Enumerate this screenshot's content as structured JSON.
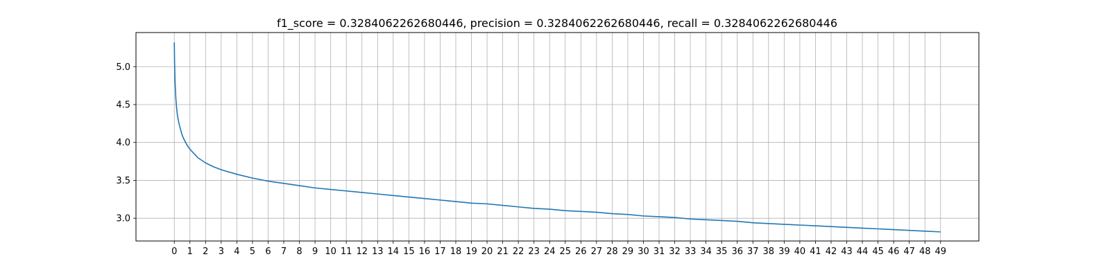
{
  "chart_data": {
    "type": "line",
    "title": "f1_score = 0.3284062262680446, precision = 0.3284062262680446, recall = 0.3284062262680446",
    "xlabel": "",
    "ylabel": "",
    "xlim": [
      -2.45,
      51.45
    ],
    "ylim": [
      2.7,
      5.45
    ],
    "x_ticks": [
      0,
      1,
      2,
      3,
      4,
      5,
      6,
      7,
      8,
      9,
      10,
      11,
      12,
      13,
      14,
      15,
      16,
      17,
      18,
      19,
      20,
      21,
      22,
      23,
      24,
      25,
      26,
      27,
      28,
      29,
      30,
      31,
      32,
      33,
      34,
      35,
      36,
      37,
      38,
      39,
      40,
      41,
      42,
      43,
      44,
      45,
      46,
      47,
      48,
      49
    ],
    "y_ticks": [
      3.0,
      3.5,
      4.0,
      4.5,
      5.0
    ],
    "y_tick_labels": [
      "3.0",
      "3.5",
      "4.0",
      "4.5",
      "5.0"
    ],
    "grid": true,
    "colors": {
      "line": "#1f77b4",
      "grid": "#b0b0b0",
      "axes": "#000000"
    },
    "series": [
      {
        "x": [
          0,
          0.02,
          0.05,
          0.1,
          0.15,
          0.2,
          0.3,
          0.4,
          0.5,
          0.6,
          0.8,
          1,
          1.5,
          2,
          2.5,
          3,
          4,
          5,
          6,
          7,
          8,
          9,
          10,
          11,
          12,
          13,
          14,
          15,
          16,
          17,
          18,
          19,
          20,
          21,
          22,
          23,
          24,
          25,
          26,
          27,
          28,
          29,
          30,
          31,
          32,
          33,
          34,
          35,
          36,
          37,
          38,
          39,
          40,
          41,
          42,
          43,
          44,
          45,
          46,
          47,
          48,
          49
        ],
        "y": [
          5.32,
          5.05,
          4.8,
          4.58,
          4.45,
          4.36,
          4.25,
          4.17,
          4.1,
          4.05,
          3.97,
          3.91,
          3.8,
          3.73,
          3.68,
          3.64,
          3.58,
          3.53,
          3.49,
          3.46,
          3.43,
          3.4,
          3.38,
          3.36,
          3.34,
          3.32,
          3.3,
          3.28,
          3.26,
          3.24,
          3.22,
          3.2,
          3.19,
          3.17,
          3.15,
          3.13,
          3.12,
          3.1,
          3.09,
          3.08,
          3.06,
          3.05,
          3.03,
          3.02,
          3.01,
          2.99,
          2.98,
          2.97,
          2.96,
          2.94,
          2.93,
          2.92,
          2.91,
          2.9,
          2.89,
          2.88,
          2.87,
          2.86,
          2.85,
          2.84,
          2.83,
          2.82
        ]
      }
    ]
  }
}
